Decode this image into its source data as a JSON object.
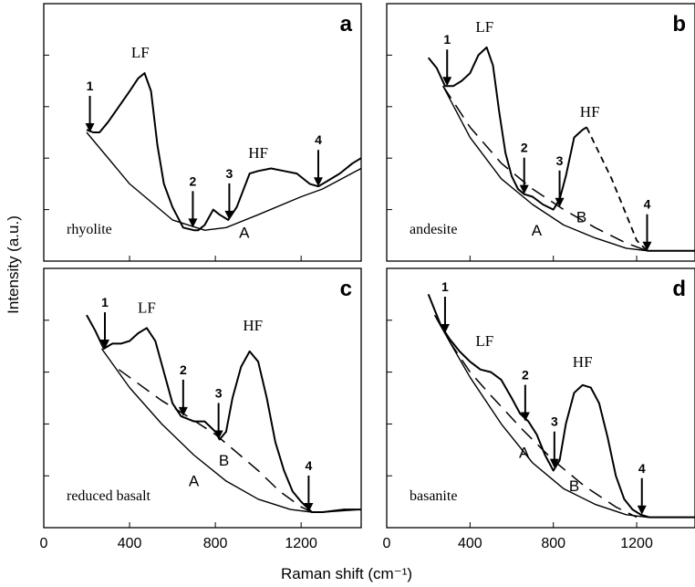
{
  "figure": {
    "xlabel": "Raman shift (cm⁻¹)",
    "ylabel": "Intensity (a.u.)"
  },
  "chart_data": [
    {
      "type": "line",
      "panel": "a",
      "sample": "rhyolite",
      "xlim": [
        0,
        1480
      ],
      "xticks": [
        0,
        400,
        800,
        1200
      ],
      "ylim": [
        0,
        1
      ],
      "series": [
        {
          "role": "spectrum",
          "x": [
            200,
            230,
            260,
            300,
            350,
            400,
            440,
            470,
            500,
            530,
            560,
            600,
            650,
            700,
            720,
            750,
            790,
            820,
            860,
            900,
            960,
            1000,
            1060,
            1120,
            1180,
            1240,
            1280,
            1320,
            1380,
            1440,
            1480
          ],
          "y": [
            0.51,
            0.5,
            0.5,
            0.54,
            0.6,
            0.66,
            0.71,
            0.73,
            0.66,
            0.45,
            0.3,
            0.21,
            0.13,
            0.12,
            0.12,
            0.14,
            0.2,
            0.18,
            0.16,
            0.21,
            0.34,
            0.35,
            0.36,
            0.35,
            0.34,
            0.3,
            0.29,
            0.31,
            0.34,
            0.38,
            0.4
          ]
        },
        {
          "role": "baseline A",
          "x": [
            200,
            400,
            600,
            750,
            850,
            1000,
            1200,
            1300,
            1480
          ],
          "y": [
            0.5,
            0.3,
            0.16,
            0.12,
            0.13,
            0.18,
            0.25,
            0.28,
            0.36
          ]
        }
      ],
      "markers": [
        {
          "label": "1",
          "x": 215,
          "y": 0.5
        },
        {
          "label": "2",
          "x": 695,
          "y": 0.13
        },
        {
          "label": "3",
          "x": 865,
          "y": 0.16
        },
        {
          "label": "4",
          "x": 1280,
          "y": 0.29
        }
      ],
      "annotations": [
        {
          "text": "LF",
          "x": 450,
          "y": 0.79
        },
        {
          "text": "HF",
          "x": 1000,
          "y": 0.4
        },
        {
          "text": "A",
          "x": 935,
          "y": 0.09
        }
      ]
    },
    {
      "type": "line",
      "panel": "b",
      "sample": "andesite",
      "xlim": [
        0,
        1480
      ],
      "xticks": [
        0,
        400,
        800,
        1200
      ],
      "ylim": [
        0,
        1
      ],
      "series": [
        {
          "role": "spectrum",
          "x": [
            200,
            240,
            280,
            320,
            360,
            400,
            440,
            480,
            510,
            540,
            570,
            600,
            630,
            660,
            700,
            750,
            800,
            830,
            860,
            900,
            940,
            960
          ],
          "y": [
            0.79,
            0.75,
            0.68,
            0.68,
            0.7,
            0.73,
            0.8,
            0.83,
            0.76,
            0.58,
            0.42,
            0.33,
            0.28,
            0.26,
            0.25,
            0.22,
            0.2,
            0.24,
            0.33,
            0.48,
            0.51,
            0.52
          ]
        },
        {
          "role": "interpolation",
          "x": [
            960,
            1020,
            1080,
            1140,
            1200,
            1250
          ],
          "y": [
            0.52,
            0.42,
            0.32,
            0.2,
            0.08,
            0.04
          ]
        },
        {
          "role": "spectrum",
          "x": [
            1250,
            1300,
            1380,
            1440,
            1480
          ],
          "y": [
            0.04,
            0.04,
            0.04,
            0.04,
            0.04
          ]
        },
        {
          "role": "baseline A",
          "x": [
            270,
            400,
            550,
            700,
            850,
            1000,
            1150,
            1250,
            1300,
            1480
          ],
          "y": [
            0.68,
            0.48,
            0.32,
            0.22,
            0.14,
            0.09,
            0.05,
            0.04,
            0.04,
            0.04
          ]
        },
        {
          "role": "baseline B",
          "x": [
            270,
            400,
            550,
            700,
            850,
            1000,
            1150,
            1250
          ],
          "y": [
            0.68,
            0.52,
            0.38,
            0.28,
            0.2,
            0.13,
            0.07,
            0.04
          ]
        }
      ],
      "markers": [
        {
          "label": "1",
          "x": 290,
          "y": 0.68
        },
        {
          "label": "2",
          "x": 660,
          "y": 0.26
        },
        {
          "label": "3",
          "x": 830,
          "y": 0.21
        },
        {
          "label": "4",
          "x": 1250,
          "y": 0.04
        }
      ],
      "annotations": [
        {
          "text": "LF",
          "x": 470,
          "y": 0.89
        },
        {
          "text": "HF",
          "x": 975,
          "y": 0.56
        },
        {
          "text": "A",
          "x": 720,
          "y": 0.1
        },
        {
          "text": "B",
          "x": 935,
          "y": 0.15
        }
      ]
    },
    {
      "type": "line",
      "panel": "c",
      "sample": "reduced basalt",
      "xlim": [
        0,
        1480
      ],
      "xticks": [
        0,
        400,
        800,
        1200
      ],
      "ylim": [
        0,
        1
      ],
      "series": [
        {
          "role": "spectrum",
          "x": [
            200,
            240,
            280,
            320,
            360,
            400,
            440,
            480,
            520,
            560,
            600,
            640,
            700,
            750,
            800,
            820,
            850,
            880,
            920,
            960,
            1000,
            1040,
            1080,
            1120,
            1160,
            1200,
            1250,
            1300,
            1400,
            1480
          ],
          "y": [
            0.82,
            0.76,
            0.69,
            0.71,
            0.71,
            0.72,
            0.75,
            0.77,
            0.72,
            0.6,
            0.48,
            0.43,
            0.41,
            0.41,
            0.37,
            0.34,
            0.37,
            0.5,
            0.62,
            0.68,
            0.64,
            0.5,
            0.33,
            0.22,
            0.14,
            0.1,
            0.06,
            0.06,
            0.07,
            0.07
          ]
        },
        {
          "role": "baseline A",
          "x": [
            270,
            400,
            550,
            700,
            850,
            1000,
            1150,
            1250,
            1300,
            1480
          ],
          "y": [
            0.69,
            0.54,
            0.4,
            0.28,
            0.18,
            0.11,
            0.07,
            0.06,
            0.06,
            0.07
          ]
        },
        {
          "role": "baseline B",
          "x": [
            350,
            450,
            550,
            650,
            800,
            900,
            1000,
            1100,
            1200,
            1250
          ],
          "y": [
            0.61,
            0.55,
            0.49,
            0.44,
            0.36,
            0.29,
            0.22,
            0.14,
            0.08,
            0.06
          ]
        }
      ],
      "markers": [
        {
          "label": "1",
          "x": 285,
          "y": 0.69
        },
        {
          "label": "2",
          "x": 650,
          "y": 0.43
        },
        {
          "label": "3",
          "x": 815,
          "y": 0.34
        },
        {
          "label": "4",
          "x": 1235,
          "y": 0.06
        }
      ],
      "annotations": [
        {
          "text": "LF",
          "x": 480,
          "y": 0.83
        },
        {
          "text": "HF",
          "x": 975,
          "y": 0.76
        },
        {
          "text": "A",
          "x": 700,
          "y": 0.16
        },
        {
          "text": "B",
          "x": 840,
          "y": 0.24
        }
      ]
    },
    {
      "type": "line",
      "panel": "d",
      "sample": "basanite",
      "xlim": [
        0,
        1480
      ],
      "xticks": [
        0,
        400,
        800,
        1200
      ],
      "ylim": [
        0,
        1
      ],
      "series": [
        {
          "role": "spectrum",
          "x": [
            200,
            230,
            260,
            300,
            350,
            400,
            450,
            500,
            550,
            600,
            640,
            680,
            720,
            760,
            800,
            830,
            860,
            900,
            940,
            980,
            1020,
            1060,
            1100,
            1140,
            1180,
            1220,
            1260,
            1320,
            1400,
            1480
          ],
          "y": [
            0.9,
            0.84,
            0.78,
            0.73,
            0.68,
            0.64,
            0.61,
            0.6,
            0.57,
            0.5,
            0.44,
            0.41,
            0.36,
            0.28,
            0.22,
            0.26,
            0.4,
            0.52,
            0.55,
            0.54,
            0.48,
            0.35,
            0.2,
            0.11,
            0.07,
            0.05,
            0.04,
            0.04,
            0.04,
            0.04
          ]
        },
        {
          "role": "baseline A",
          "x": [
            230,
            300,
            400,
            550,
            700,
            850,
            1000,
            1150,
            1250,
            1300,
            1480
          ],
          "y": [
            0.82,
            0.72,
            0.58,
            0.4,
            0.25,
            0.15,
            0.09,
            0.05,
            0.04,
            0.04,
            0.04
          ]
        },
        {
          "role": "baseline B",
          "x": [
            300,
            400,
            500,
            650,
            800,
            950,
            1100,
            1200
          ],
          "y": [
            0.72,
            0.6,
            0.51,
            0.38,
            0.26,
            0.16,
            0.08,
            0.04
          ]
        }
      ],
      "markers": [
        {
          "label": "1",
          "x": 280,
          "y": 0.75
        },
        {
          "label": "2",
          "x": 665,
          "y": 0.41
        },
        {
          "label": "3",
          "x": 805,
          "y": 0.23
        },
        {
          "label": "4",
          "x": 1225,
          "y": 0.05
        }
      ],
      "annotations": [
        {
          "text": "LF",
          "x": 470,
          "y": 0.7
        },
        {
          "text": "HF",
          "x": 940,
          "y": 0.62
        },
        {
          "text": "A",
          "x": 660,
          "y": 0.27
        },
        {
          "text": "B",
          "x": 900,
          "y": 0.14
        }
      ]
    }
  ]
}
